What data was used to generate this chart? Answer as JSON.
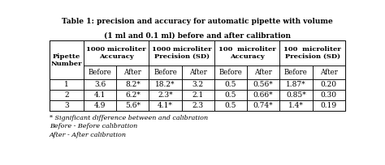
{
  "title_line1": "Table 1: precision and accuracy for automatic pipette with volume",
  "title_line2": "(1 ml and 0.1 ml) before and after calibration",
  "col_headers": [
    "Pipette\nNumber",
    "1000 microliter\nAccuracy",
    "1000 microliter\nPrecision (SD)",
    "100  microliter\nAccuracy",
    "100  microliter\nPrecision (SD)"
  ],
  "sub_headers": [
    "Before",
    "After",
    "Before",
    "After",
    "Before",
    "After",
    "Before",
    "After"
  ],
  "rows": [
    [
      "1",
      "3.6",
      "8.2*",
      "18.2*",
      "3.2",
      "0.5",
      "0.56*",
      "1.87*",
      "0.20"
    ],
    [
      "2",
      "4.1",
      "6.2*",
      "2.3*",
      "2.1",
      "0.5",
      "0.66*",
      "0.85*",
      "0.30"
    ],
    [
      "3",
      "4.9",
      "5.6*",
      "4.1*",
      "2.3",
      "0.5",
      "0.74*",
      "1.4*",
      "0.19"
    ]
  ],
  "footnotes": [
    "* Significant difference between and calibration",
    "Before - Before calibration",
    "After - After calibration"
  ],
  "text_color": "#000000",
  "font_size_title": 6.5,
  "font_size_header": 6.0,
  "font_size_subheader": 6.2,
  "font_size_cell": 6.5,
  "font_size_footnote": 5.8
}
